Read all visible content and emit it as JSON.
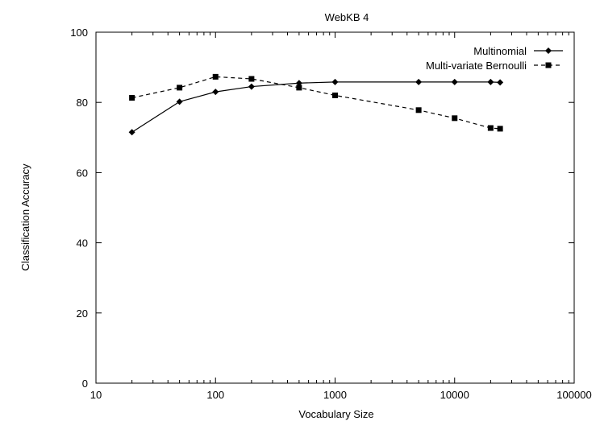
{
  "chart_data": {
    "type": "line",
    "title": "WebKB 4",
    "xlabel": "Vocabulary Size",
    "ylabel": "Classification Accuracy",
    "xscale": "log",
    "xlim": [
      10,
      100000
    ],
    "ylim": [
      0,
      100
    ],
    "xticks": [
      10,
      100,
      1000,
      10000,
      100000
    ],
    "xtick_labels": [
      "10",
      "100",
      "1000",
      "10000",
      "100000"
    ],
    "yticks": [
      0,
      20,
      40,
      60,
      80,
      100
    ],
    "ytick_labels": [
      "0",
      "20",
      "40",
      "60",
      "80",
      "100"
    ],
    "grid": false,
    "legend_position": "top-right",
    "series": [
      {
        "name": "Multinomial",
        "marker": "diamond",
        "line": "solid",
        "x": [
          20,
          50,
          100,
          200,
          500,
          1000,
          5000,
          10000,
          20000,
          24000
        ],
        "y": [
          71.5,
          80.2,
          83.0,
          84.5,
          85.5,
          85.8,
          85.8,
          85.8,
          85.8,
          85.7
        ]
      },
      {
        "name": "Multi-variate Bernoulli",
        "marker": "square",
        "line": "dashed",
        "x": [
          20,
          50,
          100,
          200,
          500,
          1000,
          5000,
          10000,
          20000,
          24000
        ],
        "y": [
          81.3,
          84.2,
          87.3,
          86.7,
          84.2,
          82.0,
          77.8,
          75.5,
          72.7,
          72.5
        ]
      }
    ]
  }
}
